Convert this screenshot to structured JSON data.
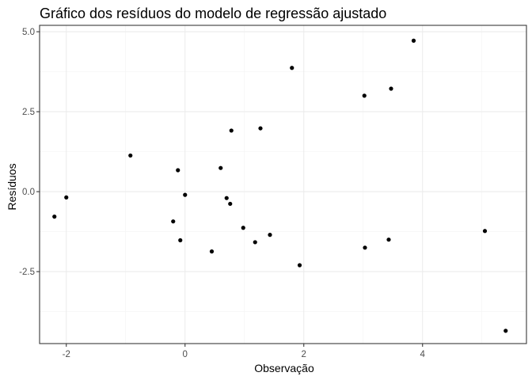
{
  "chart_data": {
    "type": "scatter",
    "title": "Gráfico dos resíduos do modelo de regressão ajustado",
    "xlabel": "Observação",
    "ylabel": "Resíduos",
    "xlim": [
      -2.45,
      5.75
    ],
    "ylim": [
      -4.75,
      5.2
    ],
    "x_ticks": [
      -2,
      0,
      2,
      4
    ],
    "x_tick_labels": [
      "-2",
      "0",
      "2",
      "4"
    ],
    "y_ticks": [
      -2.5,
      0.0,
      2.5,
      5.0
    ],
    "y_tick_labels": [
      "-2.5",
      "0.0",
      "2.5",
      "5.0"
    ],
    "grid": true,
    "legend": "none",
    "point_color": "#000000",
    "points": [
      {
        "x": -2.2,
        "y": -0.78
      },
      {
        "x": -2.0,
        "y": -0.18
      },
      {
        "x": -0.92,
        "y": 1.13
      },
      {
        "x": -0.2,
        "y": -0.93
      },
      {
        "x": -0.12,
        "y": 0.67
      },
      {
        "x": -0.08,
        "y": -1.52
      },
      {
        "x": 0.0,
        "y": -0.1
      },
      {
        "x": 0.45,
        "y": -1.87
      },
      {
        "x": 0.6,
        "y": 0.74
      },
      {
        "x": 0.7,
        "y": -0.2
      },
      {
        "x": 0.76,
        "y": -0.38
      },
      {
        "x": 0.78,
        "y": 1.91
      },
      {
        "x": 0.98,
        "y": -1.13
      },
      {
        "x": 1.18,
        "y": -1.58
      },
      {
        "x": 1.27,
        "y": 1.98
      },
      {
        "x": 1.43,
        "y": -1.35
      },
      {
        "x": 1.8,
        "y": 3.87
      },
      {
        "x": 1.93,
        "y": -2.3
      },
      {
        "x": 3.02,
        "y": 3.0
      },
      {
        "x": 3.03,
        "y": -1.75
      },
      {
        "x": 3.43,
        "y": -1.5
      },
      {
        "x": 3.47,
        "y": 3.22
      },
      {
        "x": 3.85,
        "y": 4.72
      },
      {
        "x": 5.05,
        "y": -1.23
      },
      {
        "x": 5.4,
        "y": -4.35
      }
    ]
  }
}
